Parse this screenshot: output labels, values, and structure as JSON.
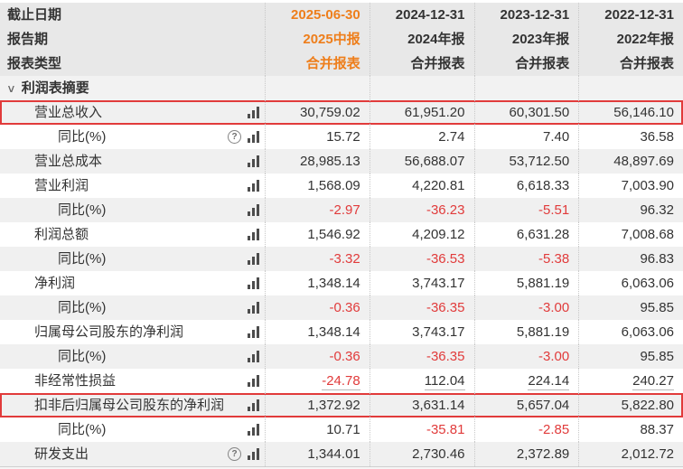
{
  "colors": {
    "accent_orange": "#ee7e1b",
    "negative_red": "#e13b3b",
    "highlight_border_red": "#e13b3b",
    "text": "#333333",
    "header_bg": "#e8e8e8",
    "section_bg": "#f2f2f2",
    "row_alt_bg": "#f0f0f0"
  },
  "icons": {
    "help_glyph": "?",
    "chevron_glyph": "∨"
  },
  "table": {
    "header_rows": [
      {
        "label": "截止日期",
        "values": [
          "2025-06-30",
          "2024-12-31",
          "2023-12-31",
          "2022-12-31"
        ]
      },
      {
        "label": "报告期",
        "values": [
          "2025中报",
          "2024年报",
          "2023年报",
          "2022年报"
        ]
      },
      {
        "label": "报表类型",
        "values": [
          "合并报表",
          "合并报表",
          "合并报表",
          "合并报表"
        ]
      }
    ],
    "section": {
      "label": "利润表摘要"
    },
    "rows": [
      {
        "label": "营业总收入",
        "indent": 1,
        "help_icon": false,
        "chart_icon": true,
        "highlighted": true,
        "underlined": false,
        "values": [
          "30,759.02",
          "61,951.20",
          "60,301.50",
          "56,146.10"
        ]
      },
      {
        "label": "同比(%)",
        "indent": 2,
        "help_icon": true,
        "chart_icon": true,
        "highlighted": false,
        "underlined": false,
        "values": [
          "15.72",
          "2.74",
          "7.40",
          "36.58"
        ]
      },
      {
        "label": "营业总成本",
        "indent": 1,
        "help_icon": false,
        "chart_icon": true,
        "highlighted": false,
        "underlined": false,
        "values": [
          "28,985.13",
          "56,688.07",
          "53,712.50",
          "48,897.69"
        ]
      },
      {
        "label": "营业利润",
        "indent": 1,
        "help_icon": false,
        "chart_icon": true,
        "highlighted": false,
        "underlined": false,
        "values": [
          "1,568.09",
          "4,220.81",
          "6,618.33",
          "7,003.90"
        ]
      },
      {
        "label": "同比(%)",
        "indent": 2,
        "help_icon": false,
        "chart_icon": true,
        "highlighted": false,
        "underlined": false,
        "values": [
          "-2.97",
          "-36.23",
          "-5.51",
          "96.32"
        ]
      },
      {
        "label": "利润总额",
        "indent": 1,
        "help_icon": false,
        "chart_icon": true,
        "highlighted": false,
        "underlined": false,
        "values": [
          "1,546.92",
          "4,209.12",
          "6,631.28",
          "7,008.68"
        ]
      },
      {
        "label": "同比(%)",
        "indent": 2,
        "help_icon": false,
        "chart_icon": true,
        "highlighted": false,
        "underlined": false,
        "values": [
          "-3.32",
          "-36.53",
          "-5.38",
          "96.83"
        ]
      },
      {
        "label": "净利润",
        "indent": 1,
        "help_icon": false,
        "chart_icon": true,
        "highlighted": false,
        "underlined": false,
        "values": [
          "1,348.14",
          "3,743.17",
          "5,881.19",
          "6,063.06"
        ]
      },
      {
        "label": "同比(%)",
        "indent": 2,
        "help_icon": false,
        "chart_icon": true,
        "highlighted": false,
        "underlined": false,
        "values": [
          "-0.36",
          "-36.35",
          "-3.00",
          "95.85"
        ]
      },
      {
        "label": "归属母公司股东的净利润",
        "indent": 1,
        "help_icon": false,
        "chart_icon": true,
        "highlighted": false,
        "underlined": false,
        "values": [
          "1,348.14",
          "3,743.17",
          "5,881.19",
          "6,063.06"
        ]
      },
      {
        "label": "同比(%)",
        "indent": 2,
        "help_icon": false,
        "chart_icon": true,
        "highlighted": false,
        "underlined": false,
        "values": [
          "-0.36",
          "-36.35",
          "-3.00",
          "95.85"
        ]
      },
      {
        "label": "非经常性损益",
        "indent": 1,
        "help_icon": false,
        "chart_icon": true,
        "highlighted": false,
        "underlined": true,
        "values": [
          "-24.78",
          "112.04",
          "224.14",
          "240.27"
        ]
      },
      {
        "label": "扣非后归属母公司股东的净利润",
        "indent": 1,
        "help_icon": false,
        "chart_icon": true,
        "highlighted": true,
        "underlined": false,
        "values": [
          "1,372.92",
          "3,631.14",
          "5,657.04",
          "5,822.80"
        ]
      },
      {
        "label": "同比(%)",
        "indent": 2,
        "help_icon": false,
        "chart_icon": true,
        "highlighted": false,
        "underlined": false,
        "values": [
          "10.71",
          "-35.81",
          "-2.85",
          "88.37"
        ]
      },
      {
        "label": "研发支出",
        "indent": 1,
        "help_icon": true,
        "chart_icon": true,
        "highlighted": false,
        "underlined": false,
        "values": [
          "1,344.01",
          "2,730.46",
          "2,372.89",
          "2,012.72"
        ]
      }
    ]
  }
}
